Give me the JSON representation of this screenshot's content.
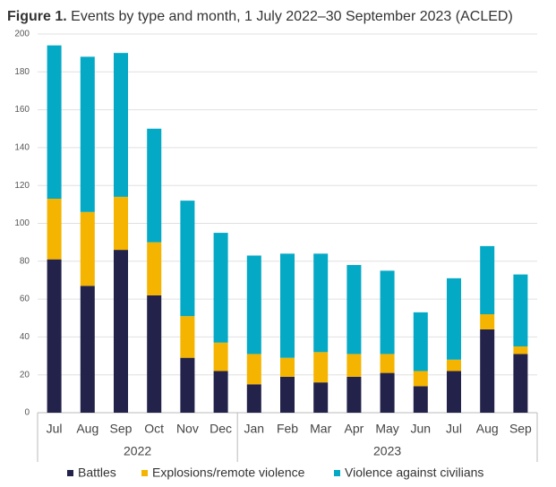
{
  "chart_data": {
    "type": "stacked-bar",
    "title_label": "Figure 1.",
    "title": "Events by type and month, 1 July 2022–30 September 2023 (ACLED)",
    "categories": [
      "Jul",
      "Aug",
      "Sep",
      "Oct",
      "Nov",
      "Dec",
      "Jan",
      "Feb",
      "Mar",
      "Apr",
      "May",
      "Jun",
      "Jul",
      "Aug",
      "Sep"
    ],
    "category_years": [
      "2022",
      "2022",
      "2022",
      "2022",
      "2022",
      "2022",
      "2023",
      "2023",
      "2023",
      "2023",
      "2023",
      "2023",
      "2023",
      "2023",
      "2023"
    ],
    "series": [
      {
        "name": "Battles",
        "color": "#22224a",
        "values": [
          81,
          67,
          86,
          62,
          29,
          22,
          15,
          19,
          16,
          19,
          21,
          14,
          22,
          44,
          31
        ]
      },
      {
        "name": "Explosions/remote violence",
        "color": "#f5b400",
        "values": [
          32,
          39,
          28,
          28,
          22,
          15,
          16,
          10,
          16,
          12,
          10,
          8,
          6,
          8,
          4
        ]
      },
      {
        "name": "Violence against civilians",
        "color": "#04a9c6",
        "values": [
          81,
          82,
          76,
          60,
          61,
          58,
          52,
          55,
          52,
          47,
          44,
          31,
          43,
          36,
          38
        ]
      }
    ],
    "ylim": [
      0,
      200
    ],
    "yticks": [
      0,
      20,
      40,
      60,
      80,
      100,
      120,
      140,
      160,
      180,
      200
    ],
    "grid": true
  }
}
